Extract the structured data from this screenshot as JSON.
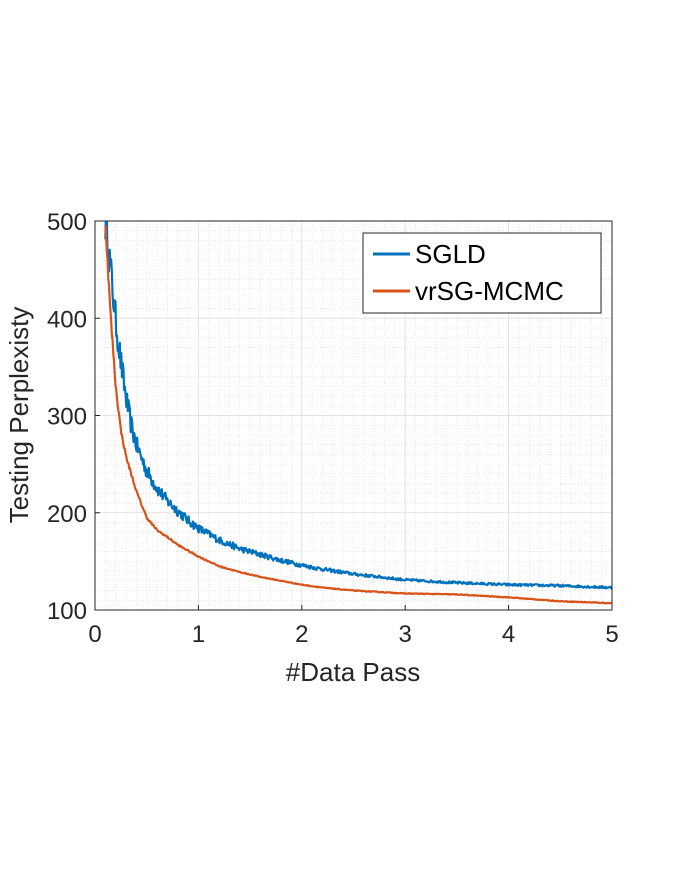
{
  "chart_data": {
    "type": "line",
    "title": "",
    "xlabel": "#Data Pass",
    "ylabel": "Testing Perplexisty",
    "xlim": [
      0,
      5
    ],
    "ylim": [
      100,
      500
    ],
    "xticks": [
      0,
      1,
      2,
      3,
      4,
      5
    ],
    "yticks": [
      100,
      200,
      300,
      400,
      500
    ],
    "grid": true,
    "minor_grid": true,
    "legend_position": "top-right",
    "series": [
      {
        "name": "SGLD",
        "color": "#0072BD",
        "noisy": true,
        "x": [
          0.1,
          0.12,
          0.15,
          0.18,
          0.2,
          0.25,
          0.3,
          0.35,
          0.4,
          0.5,
          0.6,
          0.7,
          0.8,
          0.9,
          1.0,
          1.2,
          1.4,
          1.6,
          1.8,
          2.0,
          2.2,
          2.5,
          3.0,
          3.5,
          4.0,
          4.5,
          5.0
        ],
        "y": [
          500,
          485,
          450,
          420,
          398,
          355,
          318,
          290,
          270,
          243,
          225,
          212,
          202,
          192,
          184,
          172,
          163,
          157,
          151,
          146,
          142,
          137,
          131,
          128,
          126,
          125,
          123
        ]
      },
      {
        "name": "vrSG-MCMC",
        "color": "#D95319",
        "noisy": false,
        "x": [
          0.1,
          0.12,
          0.15,
          0.18,
          0.2,
          0.25,
          0.3,
          0.35,
          0.4,
          0.5,
          0.6,
          0.7,
          0.8,
          0.9,
          1.0,
          1.2,
          1.4,
          1.6,
          1.8,
          2.0,
          2.2,
          2.5,
          3.0,
          3.5,
          4.0,
          4.5,
          5.0
        ],
        "y": [
          500,
          460,
          405,
          360,
          330,
          285,
          258,
          240,
          222,
          195,
          182,
          175,
          167,
          161,
          155,
          145,
          139,
          134,
          130,
          126,
          123,
          120,
          117,
          116,
          113,
          109,
          107
        ]
      }
    ]
  }
}
